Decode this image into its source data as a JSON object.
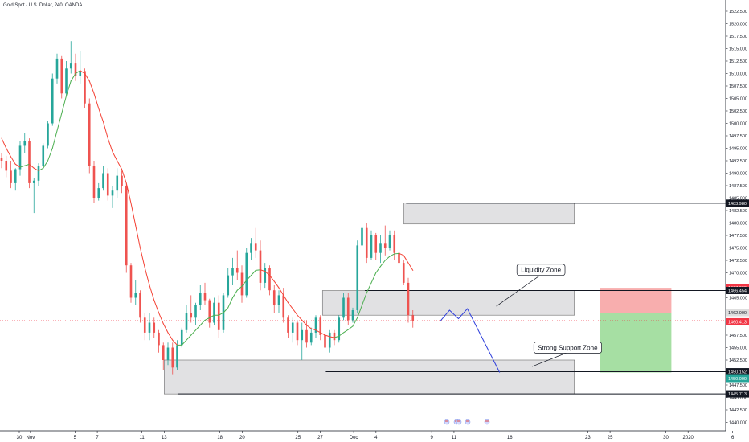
{
  "header": {
    "title": "Gold Spot / U.S. Dollar, 240, OANDA"
  },
  "colors": {
    "up": "#26a69a",
    "down": "#ef5350",
    "ma_up": "#4caf50",
    "ma_down": "#f44336",
    "zone_fill": "#d7d7d9",
    "zone_edge": "#6c6c6c",
    "stop": "#f8aeae",
    "target": "#a6dfa3",
    "projection": "#2f3fdb",
    "axis": "#131722"
  },
  "chart_data": {
    "type": "candlestick",
    "title": "Gold Spot / U.S. Dollar, 240, OANDA",
    "ylim": [
      1438.3,
      1524.5
    ],
    "price_ticks": [
      "1522.500",
      "1520.000",
      "1517.500",
      "1515.000",
      "1512.500",
      "1510.000",
      "1507.500",
      "1505.000",
      "1502.500",
      "1500.000",
      "1497.500",
      "1495.000",
      "1492.500",
      "1490.000",
      "1487.500",
      "1485.000",
      "1482.500",
      "1480.000",
      "1477.500",
      "1475.000",
      "1472.500",
      "1470.000",
      "1467.500",
      "1465.000",
      "1462.500",
      "1460.000",
      "1457.500",
      "1455.000",
      "1452.500",
      "1450.000",
      "1447.500",
      "1445.000",
      "1442.500",
      "1440.000"
    ],
    "time_ticks": [
      {
        "label": "30",
        "d": 0
      },
      {
        "label": "Nov",
        "d": 1
      },
      {
        "label": "5",
        "d": 5
      },
      {
        "label": "7",
        "d": 7
      },
      {
        "label": "11",
        "d": 11
      },
      {
        "label": "13",
        "d": 13
      },
      {
        "label": "18",
        "d": 18
      },
      {
        "label": "20",
        "d": 20
      },
      {
        "label": "25",
        "d": 25
      },
      {
        "label": "27",
        "d": 27
      },
      {
        "label": "Dec",
        "d": 30
      },
      {
        "label": "4",
        "d": 32
      },
      {
        "label": "9",
        "d": 37
      },
      {
        "label": "11",
        "d": 39
      },
      {
        "label": "16",
        "d": 44
      },
      {
        "label": "23",
        "d": 51
      },
      {
        "label": "25",
        "d": 53
      },
      {
        "label": "30",
        "d": 58
      },
      {
        "label": "2020",
        "d": 60
      },
      {
        "label": "6",
        "d": 64
      }
    ],
    "price_tags": [
      {
        "label": "1483.980",
        "value": 1483.98,
        "bg": "#131722",
        "fg": "#ffffff"
      },
      {
        "label": "1467.000",
        "value": 1467.0,
        "bg": "#f23645",
        "fg": "#ffffff"
      },
      {
        "label": "1466.454",
        "value": 1466.454,
        "bg": "#131722",
        "fg": "#ffffff"
      },
      {
        "label": "1462.000",
        "value": 1462.0,
        "bg": "#dedede",
        "fg": "#131722"
      },
      {
        "label": "1460.413",
        "value": 1460.413,
        "bg": "#f23645",
        "fg": "#ffffff"
      },
      {
        "label": "1450.152",
        "value": 1450.152,
        "bg": "#131722",
        "fg": "#ffffff"
      },
      {
        "label": "1450.000",
        "value": 1450.0,
        "bg": "#26a69a",
        "fg": "#ffffff"
      },
      {
        "label": "1445.713",
        "value": 1445.713,
        "bg": "#131722",
        "fg": "#ffffff"
      }
    ],
    "zones": [
      {
        "name": "upper-resistance-zone",
        "d1": 34.5,
        "d2": 49.8,
        "top": 1484.0,
        "bottom": 1479.8
      },
      {
        "name": "liquidity-zone",
        "d1": 27.2,
        "d2": 49.8,
        "top": 1466.45,
        "bottom": 1461.5
      },
      {
        "name": "support-zone",
        "d1": 13.0,
        "d2": 49.8,
        "top": 1452.5,
        "bottom": 1445.7
      }
    ],
    "levels": [
      {
        "value": 1483.98,
        "d1": 34.7,
        "d2": 64.5
      },
      {
        "value": 1466.454,
        "d1": 31.0,
        "d2": 64.5
      },
      {
        "value": 1450.152,
        "d1": 27.5,
        "d2": 64.5
      },
      {
        "value": 1445.713,
        "d1": 14.2,
        "d2": 64.5
      }
    ],
    "position": {
      "d1": 52.1,
      "d2": 58.5,
      "stop": 1467.0,
      "entry": 1462.0,
      "target": 1450.0
    },
    "last_price": 1460.413,
    "projection": [
      {
        "d": 37.8,
        "p": 1460.4
      },
      {
        "d": 38.6,
        "p": 1462.5
      },
      {
        "d": 39.4,
        "p": 1460.8
      },
      {
        "d": 40.2,
        "p": 1462.8
      },
      {
        "d": 43.1,
        "p": 1450.0
      }
    ],
    "annotations": [
      {
        "text": "Liquidity Zone",
        "cx": 46.8,
        "cy": 1470.6,
        "pd": 42.8,
        "pp": 1463.3
      },
      {
        "text": "Strong Support Zone",
        "cx": 49.2,
        "cy": 1455.0,
        "pd": 46.0,
        "pp": 1451.2
      }
    ],
    "ohlc": [
      [
        1493.0,
        1494.0,
        1491.0,
        1492.5
      ],
      [
        1492.5,
        1493.5,
        1489.2,
        1490.5
      ],
      [
        1490.5,
        1492.5,
        1487.0,
        1488.0
      ],
      [
        1488.0,
        1491.0,
        1486.5,
        1490.8
      ],
      [
        1490.8,
        1496.5,
        1489.5,
        1495.5
      ],
      [
        1495.5,
        1498.0,
        1494.0,
        1496.5
      ],
      [
        1496.5,
        1497.0,
        1487.0,
        1488.0
      ],
      [
        1488.0,
        1489.0,
        1482.0,
        1488.5
      ],
      [
        1488.5,
        1492.0,
        1487.5,
        1491.5
      ],
      [
        1491.5,
        1496.0,
        1491.0,
        1495.5
      ],
      [
        1495.5,
        1500.5,
        1495.0,
        1500.0
      ],
      [
        1500.0,
        1510.0,
        1499.5,
        1509.0
      ],
      [
        1509.0,
        1514.0,
        1508.0,
        1513.0
      ],
      [
        1513.0,
        1513.5,
        1505.0,
        1506.0
      ],
      [
        1506.0,
        1512.5,
        1505.5,
        1511.0
      ],
      [
        1511.0,
        1516.5,
        1510.0,
        1512.0
      ],
      [
        1512.0,
        1514.0,
        1508.5,
        1509.5
      ],
      [
        1509.5,
        1514.5,
        1508.0,
        1510.5
      ],
      [
        1510.5,
        1511.0,
        1503.0,
        1504.0
      ],
      [
        1504.0,
        1505.0,
        1490.0,
        1491.5
      ],
      [
        1491.5,
        1492.5,
        1484.0,
        1485.0
      ],
      [
        1485.0,
        1488.0,
        1484.5,
        1487.0
      ],
      [
        1487.0,
        1491.5,
        1486.5,
        1490.0
      ],
      [
        1490.0,
        1491.0,
        1484.5,
        1485.5
      ],
      [
        1485.5,
        1487.5,
        1483.0,
        1486.5
      ],
      [
        1486.5,
        1491.0,
        1485.0,
        1489.5
      ],
      [
        1489.5,
        1490.5,
        1486.0,
        1487.5
      ],
      [
        1487.5,
        1488.0,
        1470.0,
        1471.5
      ],
      [
        1471.5,
        1472.0,
        1464.0,
        1465.0
      ],
      [
        1465.0,
        1468.5,
        1463.5,
        1466.0
      ],
      [
        1466.0,
        1466.5,
        1460.0,
        1461.0
      ],
      [
        1461.0,
        1462.0,
        1456.5,
        1458.0
      ],
      [
        1458.0,
        1462.0,
        1456.5,
        1460.0
      ],
      [
        1460.0,
        1461.0,
        1457.0,
        1458.0
      ],
      [
        1458.0,
        1458.5,
        1454.0,
        1455.5
      ],
      [
        1455.5,
        1456.0,
        1450.5,
        1452.5
      ],
      [
        1452.5,
        1456.0,
        1451.5,
        1455.0
      ],
      [
        1455.0,
        1456.0,
        1449.5,
        1451.0
      ],
      [
        1451.0,
        1456.5,
        1450.5,
        1455.5
      ],
      [
        1455.5,
        1459.0,
        1455.0,
        1458.5
      ],
      [
        1458.5,
        1463.5,
        1458.0,
        1462.0
      ],
      [
        1462.0,
        1465.5,
        1460.0,
        1461.0
      ],
      [
        1461.0,
        1464.0,
        1459.5,
        1463.5
      ],
      [
        1463.5,
        1467.5,
        1462.5,
        1466.0
      ],
      [
        1466.0,
        1468.0,
        1463.5,
        1464.5
      ],
      [
        1464.5,
        1464.8,
        1459.0,
        1460.0
      ],
      [
        1460.0,
        1465.0,
        1459.5,
        1464.0
      ],
      [
        1464.0,
        1465.5,
        1457.0,
        1458.5
      ],
      [
        1458.5,
        1466.0,
        1458.0,
        1465.5
      ],
      [
        1465.5,
        1471.0,
        1465.0,
        1469.5
      ],
      [
        1469.5,
        1473.0,
        1467.5,
        1471.0
      ],
      [
        1471.0,
        1474.5,
        1468.5,
        1470.0
      ],
      [
        1470.0,
        1471.5,
        1464.0,
        1465.5
      ],
      [
        1465.5,
        1475.0,
        1465.0,
        1474.0
      ],
      [
        1474.0,
        1477.0,
        1472.5,
        1476.0
      ],
      [
        1476.0,
        1479.0,
        1473.0,
        1474.5
      ],
      [
        1474.5,
        1476.5,
        1466.5,
        1468.0
      ],
      [
        1468.0,
        1472.0,
        1467.0,
        1471.0
      ],
      [
        1471.0,
        1471.5,
        1465.5,
        1466.5
      ],
      [
        1466.5,
        1467.5,
        1462.0,
        1463.5
      ],
      [
        1463.5,
        1466.5,
        1462.0,
        1465.5
      ],
      [
        1465.5,
        1467.0,
        1460.0,
        1461.0
      ],
      [
        1461.0,
        1461.5,
        1457.0,
        1458.0
      ],
      [
        1458.0,
        1461.0,
        1456.0,
        1460.0
      ],
      [
        1460.0,
        1460.5,
        1455.5,
        1456.5
      ],
      [
        1456.5,
        1460.0,
        1452.5,
        1458.5
      ],
      [
        1458.5,
        1460.5,
        1455.0,
        1456.0
      ],
      [
        1456.0,
        1459.0,
        1455.5,
        1458.0
      ],
      [
        1458.0,
        1461.5,
        1457.0,
        1461.0
      ],
      [
        1461.0,
        1461.5,
        1456.5,
        1457.5
      ],
      [
        1457.5,
        1457.8,
        1453.5,
        1455.0
      ],
      [
        1455.0,
        1458.5,
        1454.0,
        1458.0
      ],
      [
        1458.0,
        1458.5,
        1455.5,
        1456.5
      ],
      [
        1456.5,
        1461.5,
        1456.0,
        1461.0
      ],
      [
        1461.0,
        1466.0,
        1460.5,
        1465.0
      ],
      [
        1465.0,
        1466.0,
        1459.5,
        1460.5
      ],
      [
        1460.5,
        1463.0,
        1460.0,
        1462.5
      ],
      [
        1462.5,
        1476.5,
        1462.0,
        1475.5
      ],
      [
        1475.5,
        1481.0,
        1474.5,
        1479.0
      ],
      [
        1479.0,
        1480.0,
        1472.0,
        1473.0
      ],
      [
        1473.0,
        1478.5,
        1472.5,
        1477.5
      ],
      [
        1477.5,
        1478.0,
        1472.5,
        1474.0
      ],
      [
        1474.0,
        1477.5,
        1472.0,
        1476.0
      ],
      [
        1476.0,
        1479.5,
        1473.5,
        1475.0
      ],
      [
        1475.0,
        1478.5,
        1474.5,
        1477.5
      ],
      [
        1477.5,
        1478.5,
        1472.5,
        1474.0
      ],
      [
        1474.0,
        1476.0,
        1471.0,
        1472.0
      ],
      [
        1472.0,
        1472.5,
        1467.5,
        1468.0
      ],
      [
        1468.0,
        1469.0,
        1460.0,
        1461.5
      ],
      [
        1461.5,
        1462.5,
        1459.0,
        1460.4
      ]
    ],
    "ma": [
      1497.0,
      1495.0,
      1493.3,
      1491.8,
      1491.2,
      1491.5,
      1491.8,
      1491.0,
      1490.5,
      1491.0,
      1492.5,
      1495.0,
      1498.5,
      1502.0,
      1505.5,
      1508.5,
      1510.0,
      1510.6,
      1510.0,
      1508.5,
      1506.0,
      1503.0,
      1500.3,
      1497.0,
      1494.3,
      1492.5,
      1490.8,
      1488.0,
      1484.0,
      1479.5,
      1475.0,
      1471.0,
      1467.5,
      1464.5,
      1462.0,
      1459.8,
      1458.0,
      1456.5,
      1455.5,
      1455.5,
      1456.5,
      1457.5,
      1458.5,
      1459.5,
      1460.5,
      1461.0,
      1461.5,
      1461.5,
      1462.0,
      1463.0,
      1465.0,
      1466.5,
      1467.3,
      1468.5,
      1469.5,
      1470.5,
      1470.6,
      1470.3,
      1469.5,
      1468.3,
      1467.0,
      1465.5,
      1464.0,
      1462.8,
      1461.5,
      1460.5,
      1459.5,
      1458.8,
      1458.5,
      1458.0,
      1457.5,
      1457.2,
      1457.0,
      1457.3,
      1458.0,
      1458.6,
      1459.3,
      1461.0,
      1463.5,
      1466.0,
      1468.0,
      1470.0,
      1471.3,
      1472.5,
      1473.3,
      1473.8,
      1473.9,
      1473.5,
      1472.0,
      1470.5
    ]
  }
}
